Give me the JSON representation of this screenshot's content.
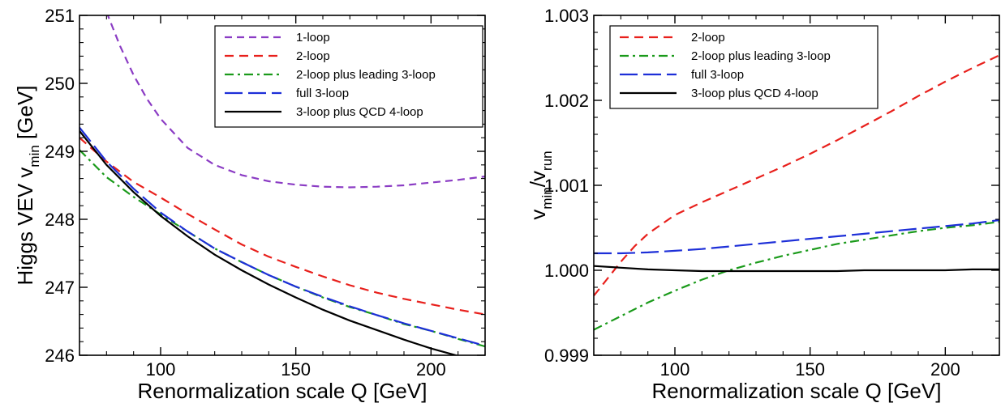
{
  "chart_data": [
    {
      "type": "line",
      "title": "",
      "xlabel": "Renormalization scale Q  [GeV]",
      "ylabel": {
        "main": "Higgs VEV   v",
        "sub": "min",
        "unit": "  [GeV]"
      },
      "xlim": [
        70,
        220
      ],
      "ylim": [
        246,
        251
      ],
      "xticks": [
        100,
        150,
        200
      ],
      "yticks": [
        246,
        247,
        248,
        249,
        250,
        251
      ],
      "grid": false,
      "legend_position": "top-right",
      "series": [
        {
          "name": "1-loop",
          "color": "#8b3cc4",
          "dash": "dashed-short",
          "x": [
            80,
            85,
            90,
            95,
            100,
            110,
            120,
            130,
            140,
            150,
            160,
            170,
            180,
            190,
            200,
            210,
            220
          ],
          "y": [
            251.05,
            250.55,
            250.12,
            249.77,
            249.48,
            249.05,
            248.8,
            248.65,
            248.56,
            248.51,
            248.48,
            248.47,
            248.48,
            248.5,
            248.54,
            248.58,
            248.63
          ]
        },
        {
          "name": "2-loop",
          "color": "#e8201c",
          "dash": "dashed",
          "x": [
            70,
            80,
            90,
            100,
            110,
            120,
            130,
            140,
            150,
            160,
            170,
            180,
            190,
            200,
            210,
            220
          ],
          "y": [
            249.2,
            248.85,
            248.55,
            248.32,
            248.08,
            247.85,
            247.63,
            247.45,
            247.3,
            247.16,
            247.03,
            246.92,
            246.83,
            246.75,
            246.67,
            246.6
          ]
        },
        {
          "name": "2-loop plus leading 3-loop",
          "color": "#1a9a1a",
          "dash": "dashdot",
          "x": [
            70,
            80,
            90,
            100,
            110,
            120,
            130,
            140,
            150,
            160,
            170,
            180,
            190,
            200,
            210,
            220
          ],
          "y": [
            249.02,
            248.62,
            248.33,
            248.07,
            247.82,
            247.57,
            247.37,
            247.18,
            247.01,
            246.85,
            246.71,
            246.59,
            246.46,
            246.36,
            246.24,
            246.13
          ]
        },
        {
          "name": "full 3-loop",
          "color": "#1d2fd8",
          "dash": "longdash",
          "x": [
            70,
            80,
            90,
            100,
            110,
            120,
            130,
            140,
            150,
            160,
            170,
            180,
            190,
            200,
            210,
            220
          ],
          "y": [
            249.35,
            248.85,
            248.45,
            248.1,
            247.82,
            247.57,
            247.37,
            247.18,
            247.01,
            246.86,
            246.72,
            246.59,
            246.47,
            246.36,
            246.25,
            246.14
          ]
        },
        {
          "name": "3-loop plus QCD 4-loop",
          "color": "#000000",
          "dash": "solid",
          "x": [
            70,
            80,
            90,
            100,
            110,
            120,
            130,
            140,
            150,
            160,
            170,
            180,
            190,
            200,
            210,
            220
          ],
          "y": [
            249.3,
            248.8,
            248.4,
            248.05,
            247.75,
            247.48,
            247.25,
            247.04,
            246.85,
            246.67,
            246.51,
            246.37,
            246.23,
            246.1,
            245.99,
            245.88
          ]
        }
      ]
    },
    {
      "type": "line",
      "title": "",
      "xlabel": "Renormalization scale Q  [GeV]",
      "ylabel": {
        "main": "v",
        "sub1": "min",
        "mid": "/v",
        "sub2": "run"
      },
      "xlim": [
        70,
        220
      ],
      "ylim": [
        0.999,
        1.003
      ],
      "xticks": [
        100,
        150,
        200
      ],
      "yticks": [
        "0.999",
        "1.000",
        "1.001",
        "1.002",
        "1.003"
      ],
      "grid": false,
      "legend_position": "top-left",
      "series": [
        {
          "name": "2-loop",
          "color": "#e8201c",
          "dash": "dashed",
          "x": [
            70,
            75,
            80,
            85,
            90,
            100,
            110,
            120,
            130,
            140,
            150,
            160,
            170,
            180,
            190,
            200,
            210,
            220
          ],
          "y": [
            0.9997,
            0.9999,
            1.0001,
            1.00028,
            1.00043,
            1.00065,
            1.0008,
            1.00094,
            1.00108,
            1.00122,
            1.00137,
            1.00153,
            1.0017,
            1.00187,
            1.00205,
            1.00222,
            1.00238,
            1.00253
          ]
        },
        {
          "name": "2-loop plus leading 3-loop",
          "color": "#1a9a1a",
          "dash": "dashdot",
          "x": [
            70,
            80,
            90,
            100,
            110,
            120,
            130,
            140,
            150,
            160,
            170,
            180,
            190,
            200,
            210,
            220
          ],
          "y": [
            0.9993,
            0.99946,
            0.99962,
            0.99976,
            0.99989,
            1.0,
            1.00009,
            1.00017,
            1.00024,
            1.00031,
            1.00036,
            1.00041,
            1.00046,
            1.0005,
            1.00053,
            1.00057
          ]
        },
        {
          "name": "full 3-loop",
          "color": "#1d2fd8",
          "dash": "longdash",
          "x": [
            70,
            80,
            90,
            100,
            110,
            120,
            130,
            140,
            150,
            160,
            170,
            180,
            190,
            200,
            210,
            220
          ],
          "y": [
            1.0002,
            1.0002,
            1.00021,
            1.00023,
            1.00025,
            1.00028,
            1.00031,
            1.00034,
            1.00037,
            1.0004,
            1.00043,
            1.00046,
            1.00049,
            1.00052,
            1.00055,
            1.00059
          ]
        },
        {
          "name": "3-loop plus QCD 4-loop",
          "color": "#000000",
          "dash": "solid",
          "x": [
            70,
            80,
            90,
            100,
            110,
            120,
            130,
            140,
            150,
            160,
            170,
            180,
            190,
            200,
            210,
            220
          ],
          "y": [
            1.00005,
            1.00003,
            1.00001,
            1.0,
            0.99999,
            0.99999,
            0.99999,
            0.99999,
            0.99999,
            0.99999,
            1.0,
            1.0,
            1.0,
            1.0,
            1.00001,
            1.00001
          ]
        }
      ]
    }
  ]
}
